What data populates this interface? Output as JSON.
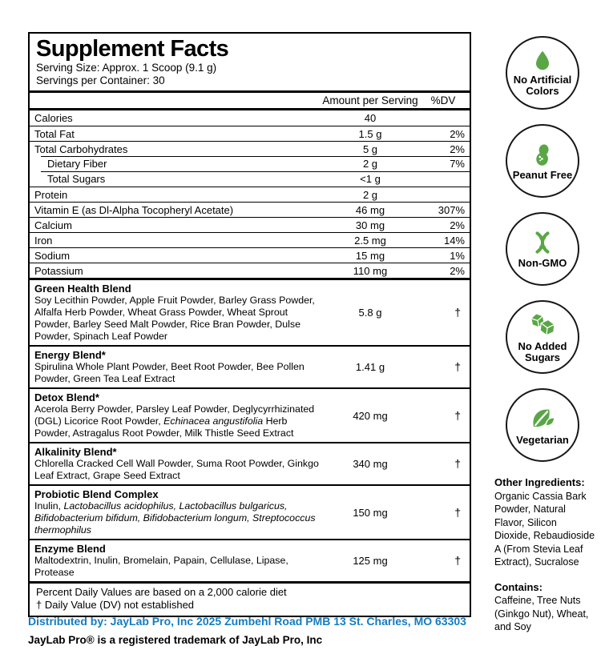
{
  "colors": {
    "green": "#5AA646",
    "blue": "#147CC2"
  },
  "panel": {
    "title": "Supplement Facts",
    "serving_size": "Serving Size: Approx. 1 Scoop (9.1 g)",
    "servings_per_container": "Servings per Container: 30",
    "col_amount": "Amount per Serving",
    "col_dv": "%DV"
  },
  "nutrients": [
    {
      "name": "Calories",
      "amount": "40",
      "dv": "",
      "indent": false
    },
    {
      "name": "Total Fat",
      "amount": "1.5 g",
      "dv": "2%",
      "indent": false
    },
    {
      "name": "Total Carbohydrates",
      "amount": "5 g",
      "dv": "2%",
      "indent": false
    },
    {
      "name": "Dietary Fiber",
      "amount": "2 g",
      "dv": "7%",
      "indent": true
    },
    {
      "name": "Total Sugars",
      "amount": "<1 g",
      "dv": "",
      "indent": true
    },
    {
      "name": "Protein",
      "amount": "2 g",
      "dv": "",
      "indent": false
    },
    {
      "name": "Vitamin E (as Dl-Alpha Tocopheryl Acetate)",
      "amount": "46 mg",
      "dv": "307%",
      "indent": false
    },
    {
      "name": "Calcium",
      "amount": "30 mg",
      "dv": "2%",
      "indent": false
    },
    {
      "name": "Iron",
      "amount": "2.5 mg",
      "dv": "14%",
      "indent": false
    },
    {
      "name": "Sodium",
      "amount": "15 mg",
      "dv": "1%",
      "indent": false
    },
    {
      "name": "Potassium",
      "amount": "110 mg",
      "dv": "2%",
      "indent": false
    }
  ],
  "blends": [
    {
      "name": "Green Health Blend",
      "amount": "5.8 g",
      "dv": "†",
      "desc": [
        {
          "text": "Soy Lecithin Powder, Apple Fruit Powder, Barley Grass Powder, Alfalfa Herb Powder, Wheat Grass Powder, Wheat Sprout Powder, Barley Seed Malt Powder, Rice Bran Powder, Dulse Powder, Spinach Leaf Powder"
        }
      ]
    },
    {
      "name": "Energy Blend*",
      "amount": "1.41 g",
      "dv": "†",
      "desc": [
        {
          "text": "Spirulina Whole Plant Powder, Beet Root Powder, Bee Pollen Powder, Green Tea Leaf Extract"
        }
      ]
    },
    {
      "name": "Detox Blend*",
      "amount": "420 mg",
      "dv": "†",
      "desc": [
        {
          "text": "Acerola Berry Powder, Parsley Leaf Powder, Deglycyrrhizinated (DGL) Licorice Root Powder, "
        },
        {
          "text": "Echinacea angustifolia",
          "italic": true
        },
        {
          "text": " Herb Powder, Astragalus Root Powder, Milk Thistle Seed Extract"
        }
      ]
    },
    {
      "name": "Alkalinity Blend*",
      "amount": "340 mg",
      "dv": "†",
      "desc": [
        {
          "text": "Chlorella Cracked Cell Wall Powder, Suma Root Powder, Ginkgo Leaf Extract, Grape Seed Extract"
        }
      ]
    },
    {
      "name": "Probiotic Blend Complex",
      "amount": "150 mg",
      "dv": "†",
      "desc": [
        {
          "text": "Inulin, "
        },
        {
          "text": "Lactobacillus acidophilus, Lactobacillus bulgaricus, Bifidobacterium bifidum, Bifidobacterium longum, Streptococcus thermophilus",
          "italic": true
        }
      ]
    },
    {
      "name": "Enzyme Blend",
      "amount": "125 mg",
      "dv": "†",
      "desc": [
        {
          "text": "Maltodextrin, Inulin, Bromelain, Papain, Cellulase, Lipase, Protease"
        }
      ]
    }
  ],
  "footnotes": [
    "Percent Daily Values are based on a 2,000 calorie diet",
    "† Daily Value (DV) not established"
  ],
  "badges": [
    {
      "label": "No Artificial Colors",
      "icon": "droplet-icon"
    },
    {
      "label": "Peanut Free",
      "icon": "peanut-icon"
    },
    {
      "label": "Non-GMO",
      "icon": "dna-icon"
    },
    {
      "label": "No Added Sugars",
      "icon": "sugar-cubes-icon"
    },
    {
      "label": "Vegetarian",
      "icon": "leaves-icon"
    }
  ],
  "right_column": {
    "other_ingredients_heading": "Other Ingredients:",
    "other_ingredients": "Organic Cassia Bark Powder, Natural Flavor, Silicon Dioxide, Rebaudioside A (From Stevia Leaf Extract), Sucralose",
    "contains_heading": "Contains:",
    "contains": "Caffeine, Tree Nuts (Ginkgo Nut), Wheat, and Soy"
  },
  "footer": {
    "distributed_by_label": "Distributed by:",
    "distributed_by": "JayLab Pro, Inc 2025 Zumbehl Road PMB 13 St. Charles, MO 63303",
    "trademark": "JayLab Pro® is a registered trademark of JayLab Pro, Inc"
  }
}
